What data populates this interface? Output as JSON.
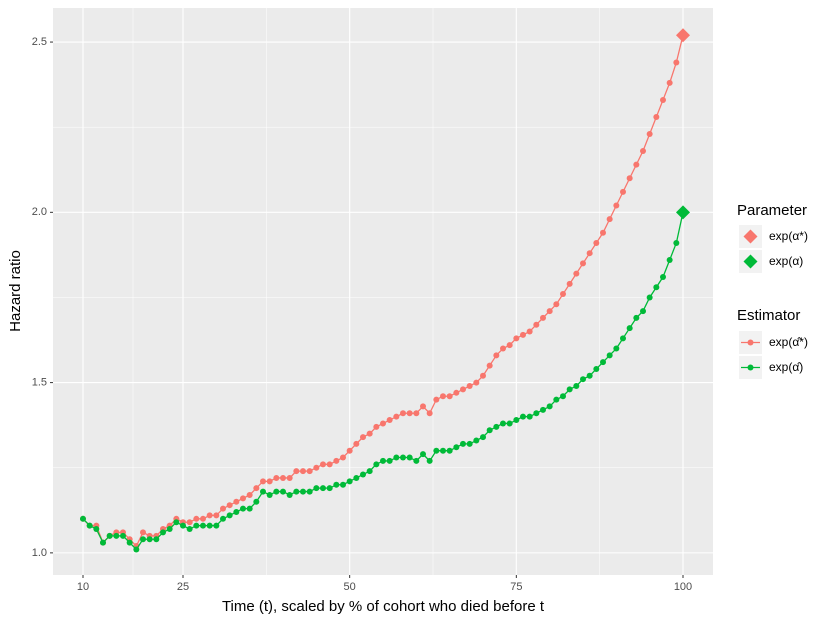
{
  "chart_data": {
    "type": "line",
    "x_label": "Time (t), scaled by % of cohort who died before t",
    "y_label": "Hazard ratio",
    "xlim": [
      5.5,
      104.5
    ],
    "ylim": [
      0.935,
      2.6
    ],
    "xticks": [
      10,
      25,
      50,
      75,
      100
    ],
    "yticks": [
      {
        "value": 1,
        "label": "1.0"
      },
      {
        "value": 1.5,
        "label": "1.5"
      },
      {
        "value": 2,
        "label": "2.0"
      },
      {
        "value": 2.5,
        "label": "2.5"
      }
    ],
    "grid": true,
    "x": [
      10,
      11,
      12,
      13,
      14,
      15,
      16,
      17,
      18,
      19,
      20,
      21,
      22,
      23,
      24,
      25,
      26,
      27,
      28,
      29,
      30,
      31,
      32,
      33,
      34,
      35,
      36,
      37,
      38,
      39,
      40,
      41,
      42,
      43,
      44,
      45,
      46,
      47,
      48,
      49,
      50,
      51,
      52,
      53,
      54,
      55,
      56,
      57,
      58,
      59,
      60,
      61,
      62,
      63,
      64,
      65,
      66,
      67,
      68,
      69,
      70,
      71,
      72,
      73,
      74,
      75,
      76,
      77,
      78,
      79,
      80,
      81,
      82,
      83,
      84,
      85,
      86,
      87,
      88,
      89,
      90,
      91,
      92,
      93,
      94,
      95,
      96,
      97,
      98,
      99,
      100
    ],
    "series_legend_title": "Estimator",
    "series": [
      {
        "name": "exp(α̂*)",
        "color": "#F8766D",
        "values": [
          1.1,
          1.08,
          1.08,
          1.03,
          1.05,
          1.06,
          1.06,
          1.04,
          1.02,
          1.06,
          1.05,
          1.05,
          1.07,
          1.08,
          1.1,
          1.09,
          1.09,
          1.1,
          1.1,
          1.11,
          1.11,
          1.13,
          1.14,
          1.15,
          1.16,
          1.17,
          1.19,
          1.21,
          1.21,
          1.22,
          1.22,
          1.22,
          1.24,
          1.24,
          1.24,
          1.25,
          1.26,
          1.26,
          1.27,
          1.28,
          1.3,
          1.32,
          1.34,
          1.35,
          1.37,
          1.38,
          1.39,
          1.4,
          1.41,
          1.41,
          1.41,
          1.43,
          1.41,
          1.45,
          1.46,
          1.46,
          1.47,
          1.48,
          1.49,
          1.5,
          1.52,
          1.55,
          1.58,
          1.6,
          1.61,
          1.63,
          1.64,
          1.65,
          1.67,
          1.69,
          1.71,
          1.73,
          1.76,
          1.79,
          1.82,
          1.85,
          1.88,
          1.91,
          1.94,
          1.98,
          2.02,
          2.06,
          2.1,
          2.14,
          2.18,
          2.23,
          2.28,
          2.33,
          2.38,
          2.44,
          2.52
        ]
      },
      {
        "name": "exp(α̂)",
        "color": "#00BA38",
        "values": [
          1.1,
          1.08,
          1.07,
          1.03,
          1.05,
          1.05,
          1.05,
          1.03,
          1.01,
          1.04,
          1.04,
          1.04,
          1.06,
          1.07,
          1.09,
          1.08,
          1.07,
          1.08,
          1.08,
          1.08,
          1.08,
          1.1,
          1.11,
          1.12,
          1.13,
          1.13,
          1.15,
          1.18,
          1.17,
          1.18,
          1.18,
          1.17,
          1.18,
          1.18,
          1.18,
          1.19,
          1.19,
          1.19,
          1.2,
          1.2,
          1.21,
          1.22,
          1.23,
          1.24,
          1.26,
          1.27,
          1.27,
          1.28,
          1.28,
          1.28,
          1.27,
          1.29,
          1.27,
          1.3,
          1.3,
          1.3,
          1.31,
          1.32,
          1.32,
          1.33,
          1.34,
          1.36,
          1.37,
          1.38,
          1.38,
          1.39,
          1.4,
          1.4,
          1.41,
          1.42,
          1.43,
          1.45,
          1.46,
          1.48,
          1.49,
          1.51,
          1.52,
          1.54,
          1.56,
          1.58,
          1.6,
          1.63,
          1.66,
          1.69,
          1.71,
          1.75,
          1.78,
          1.81,
          1.86,
          1.91,
          2.0
        ]
      }
    ],
    "parameter_legend": {
      "title": "Parameter",
      "entries": [
        {
          "name": "exp(α*)",
          "color": "#F8766D",
          "x": 100,
          "value": 2.52
        },
        {
          "name": "exp(α)",
          "color": "#00BA38",
          "x": 100,
          "value": 2.0
        }
      ]
    }
  }
}
